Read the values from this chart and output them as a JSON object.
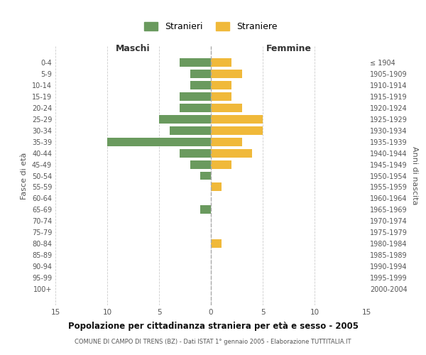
{
  "age_groups": [
    "0-4",
    "5-9",
    "10-14",
    "15-19",
    "20-24",
    "25-29",
    "30-34",
    "35-39",
    "40-44",
    "45-49",
    "50-54",
    "55-59",
    "60-64",
    "65-69",
    "70-74",
    "75-79",
    "80-84",
    "85-89",
    "90-94",
    "95-99",
    "100+"
  ],
  "birth_years": [
    "2000-2004",
    "1995-1999",
    "1990-1994",
    "1985-1989",
    "1980-1984",
    "1975-1979",
    "1970-1974",
    "1965-1969",
    "1960-1964",
    "1955-1959",
    "1950-1954",
    "1945-1949",
    "1940-1944",
    "1935-1939",
    "1930-1934",
    "1925-1929",
    "1920-1924",
    "1915-1919",
    "1910-1914",
    "1905-1909",
    "≤ 1904"
  ],
  "males": [
    3,
    2,
    2,
    3,
    3,
    5,
    4,
    10,
    3,
    2,
    1,
    0,
    0,
    1,
    0,
    0,
    0,
    0,
    0,
    0,
    0
  ],
  "females": [
    2,
    3,
    2,
    2,
    3,
    5,
    5,
    3,
    4,
    2,
    0,
    1,
    0,
    0,
    0,
    0,
    1,
    0,
    0,
    0,
    0
  ],
  "male_color": "#6a9a5e",
  "female_color": "#f0b93a",
  "title": "Popolazione per cittadinanza straniera per età e sesso - 2005",
  "subtitle": "COMUNE DI CAMPO DI TRENS (BZ) - Dati ISTAT 1° gennaio 2005 - Elaborazione TUTTITALIA.IT",
  "xlabel_left": "Maschi",
  "xlabel_right": "Femmine",
  "ylabel_left": "Fasce di età",
  "ylabel_right": "Anni di nascita",
  "legend_male": "Stranieri",
  "legend_female": "Straniere",
  "xlim": 15,
  "background_color": "#ffffff",
  "grid_color": "#cccccc",
  "bar_height": 0.75
}
